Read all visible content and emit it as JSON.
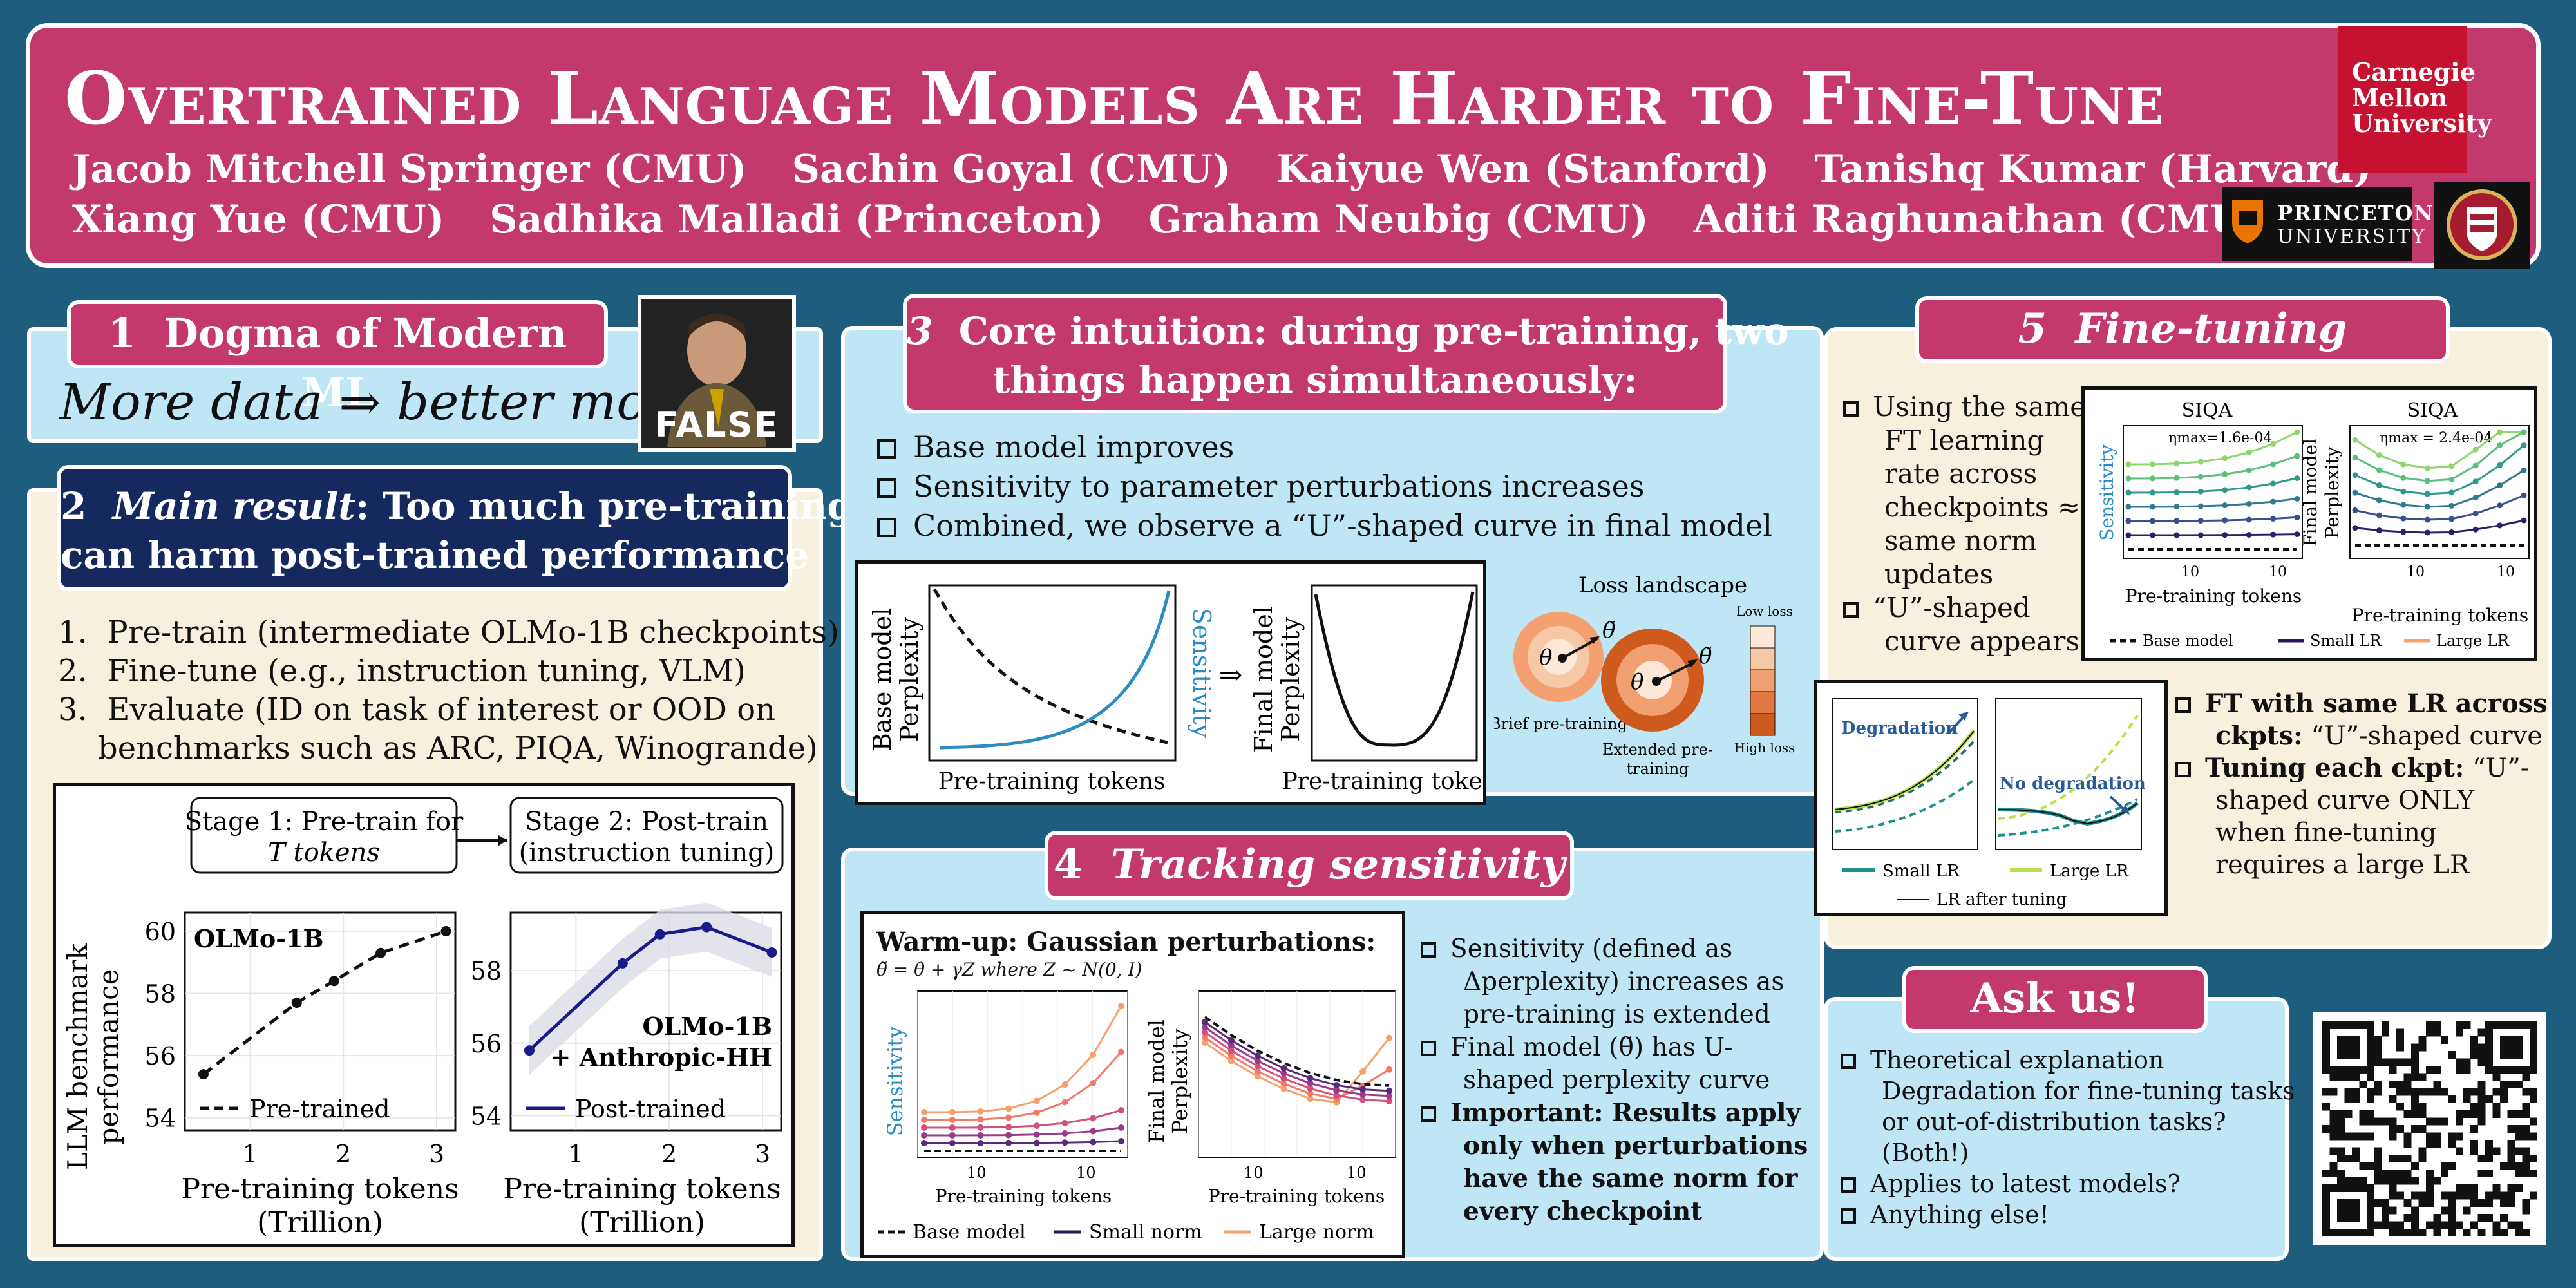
{
  "header": {
    "title": "Overtrained Language Models Are Harder to Fine-Tune",
    "authors_row1": [
      "Jacob Mitchell Springer (CMU)",
      "Sachin Goyal (CMU)",
      "Kaiyue Wen (Stanford)",
      "Tanishq Kumar (Harvard)"
    ],
    "authors_row2": [
      "Xiang Yue (CMU)",
      "Sadhika Malladi (Princeton)",
      "Graham Neubig (CMU)",
      "Aditi Raghunathan (CMU)"
    ],
    "cmu_logo": [
      "Carnegie",
      "Mellon",
      "University"
    ],
    "princeton_logo": [
      "PRINCETON",
      "UNIVERSITY"
    ],
    "brand_color": "#c4396d"
  },
  "s1": {
    "num": "1",
    "title": "Dogma of Modern ML",
    "text": "More data ⇒ better model",
    "badge": "FALSE"
  },
  "s2": {
    "num": "2",
    "title_em": "Main result",
    "title_rest": ": Too much pre-training",
    "title_line2": "can harm post-trained performance",
    "steps": [
      "Pre-train (intermediate OLMo-1B checkpoints)",
      "Fine-tune (e.g., instruction tuning, VLM)",
      "Evaluate (ID on task of interest or OOD on",
      "benchmarks such as ARC, PIQA, Winogrande)"
    ],
    "stage1": [
      "Stage 1: Pre-train for",
      "T tokens"
    ],
    "stage2": [
      "Stage 2: Post-train",
      "(instruction tuning)"
    ],
    "ylabel": [
      "LLM benchmark",
      "performance"
    ],
    "xlabel": [
      "Pre-training tokens",
      "(Trillion)"
    ],
    "left_plot": {
      "label": "OLMo-1B",
      "legend": "Pre-trained",
      "yticks": [
        "60",
        "58",
        "56",
        "54"
      ],
      "xticks": [
        "1",
        "2",
        "3"
      ]
    },
    "right_plot": {
      "label1": "OLMo-1B",
      "label2": "+ Anthropic-HH",
      "legend": "Post-trained",
      "yticks": [
        "58",
        "56",
        "54"
      ],
      "xticks": [
        "1",
        "2",
        "3"
      ]
    }
  },
  "chart_data": [
    {
      "type": "line",
      "series": [
        {
          "name": "Pre-trained",
          "x": [
            0.5,
            1.5,
            1.9,
            2.4,
            3.1
          ],
          "y": [
            55.4,
            57.7,
            58.4,
            59.3,
            60.0
          ]
        }
      ],
      "xlabel": "Pre-training tokens (Trillion)",
      "ylabel": "LLM benchmark performance",
      "ylim": [
        53.6,
        60.6
      ]
    },
    {
      "type": "line",
      "series": [
        {
          "name": "Post-trained",
          "x": [
            0.5,
            1.5,
            1.9,
            2.4,
            3.1
          ],
          "y": [
            55.8,
            58.2,
            59.0,
            59.2,
            58.5
          ]
        }
      ],
      "xlabel": "Pre-training tokens (Trillion)",
      "ylim": [
        53.6,
        59.6
      ]
    }
  ],
  "s3": {
    "num": "3",
    "title1": "Core intuition: during pre-training, two",
    "title2": "things happen simultaneously:",
    "bullets": [
      "Base model improves",
      "Sensitivity to parameter perturbations increases",
      "Combined, we observe a “U”-shaped curve in final model"
    ],
    "fig": {
      "y1": [
        "Base model",
        "Perplexity"
      ],
      "sens": "Sensitivity",
      "arrow": "⇒",
      "y2": [
        "Final model",
        "Perplexity"
      ],
      "x": "Pre-training tokens"
    },
    "landscape": {
      "title": "Loss landscape",
      "low": "Low loss",
      "high": "High loss",
      "brief": "Brief pre-training",
      "ext": [
        "Extended pre-",
        "training"
      ],
      "theta": "θ",
      "theta_t": "θ̃"
    }
  },
  "s4": {
    "num": "4",
    "title": "Tracking sensitivity",
    "box_title": "Warm-up: Gaussian perturbations:",
    "eq": "θ̃ = θ + γZ where Z ~ N(0, I)",
    "ylab1": "Sensitivity",
    "ylab2": [
      "Final model",
      "Perplexity"
    ],
    "xlab": "Pre-training tokens",
    "xt": [
      "10",
      "10"
    ],
    "legend": [
      "Base model",
      "Small norm",
      "Large norm"
    ],
    "bullets": [
      [
        "Sensitivity (defined as",
        "Δperplexity) increases as",
        "pre-training is extended"
      ],
      [
        "Final model (θ̃) has U-",
        "shaped perplexity curve"
      ]
    ],
    "important": [
      "Important:",
      "Results apply",
      "only when perturbations",
      "have the same norm for",
      "every checkpoint"
    ]
  },
  "s5": {
    "num": "5",
    "title": "Fine-tuning",
    "bullets": [
      [
        "Using the same",
        "FT learning",
        "rate across",
        "checkpoints ≈",
        "same norm",
        "updates"
      ],
      [
        "“U”-shaped",
        "curve appears"
      ]
    ],
    "plots": {
      "t": "SIQA",
      "eta1": "ηmax=1.6e-04",
      "eta2": "ηmax = 2.4e-04",
      "y1": "Sensitivity",
      "y2": [
        "Final model",
        "Perplexity"
      ],
      "x": "Pre-training tokens",
      "xt": [
        "10",
        "10"
      ],
      "legend": [
        "Base model",
        "Small LR",
        "Large LR"
      ]
    },
    "deg": {
      "d": "Degradation",
      "nd": "No degradation",
      "legend": [
        "Small LR",
        "Large LR",
        "LR after tuning"
      ]
    },
    "right": [
      [
        "FT with same LR across",
        "ckpts:",
        " “U”-shaped curve"
      ],
      [
        "Tuning each ckpt:",
        " “U”-",
        "shaped curve ONLY",
        "when fine-tuning",
        "requires a large LR"
      ]
    ]
  },
  "ask": {
    "title": "Ask us!",
    "items": [
      [
        "Theoretical explanation",
        "Degradation for fine-tuning tasks",
        "or out-of-distribution tasks?",
        "(Both!)"
      ],
      [
        "Applies to latest models?"
      ],
      [
        "Anything else!"
      ]
    ]
  }
}
